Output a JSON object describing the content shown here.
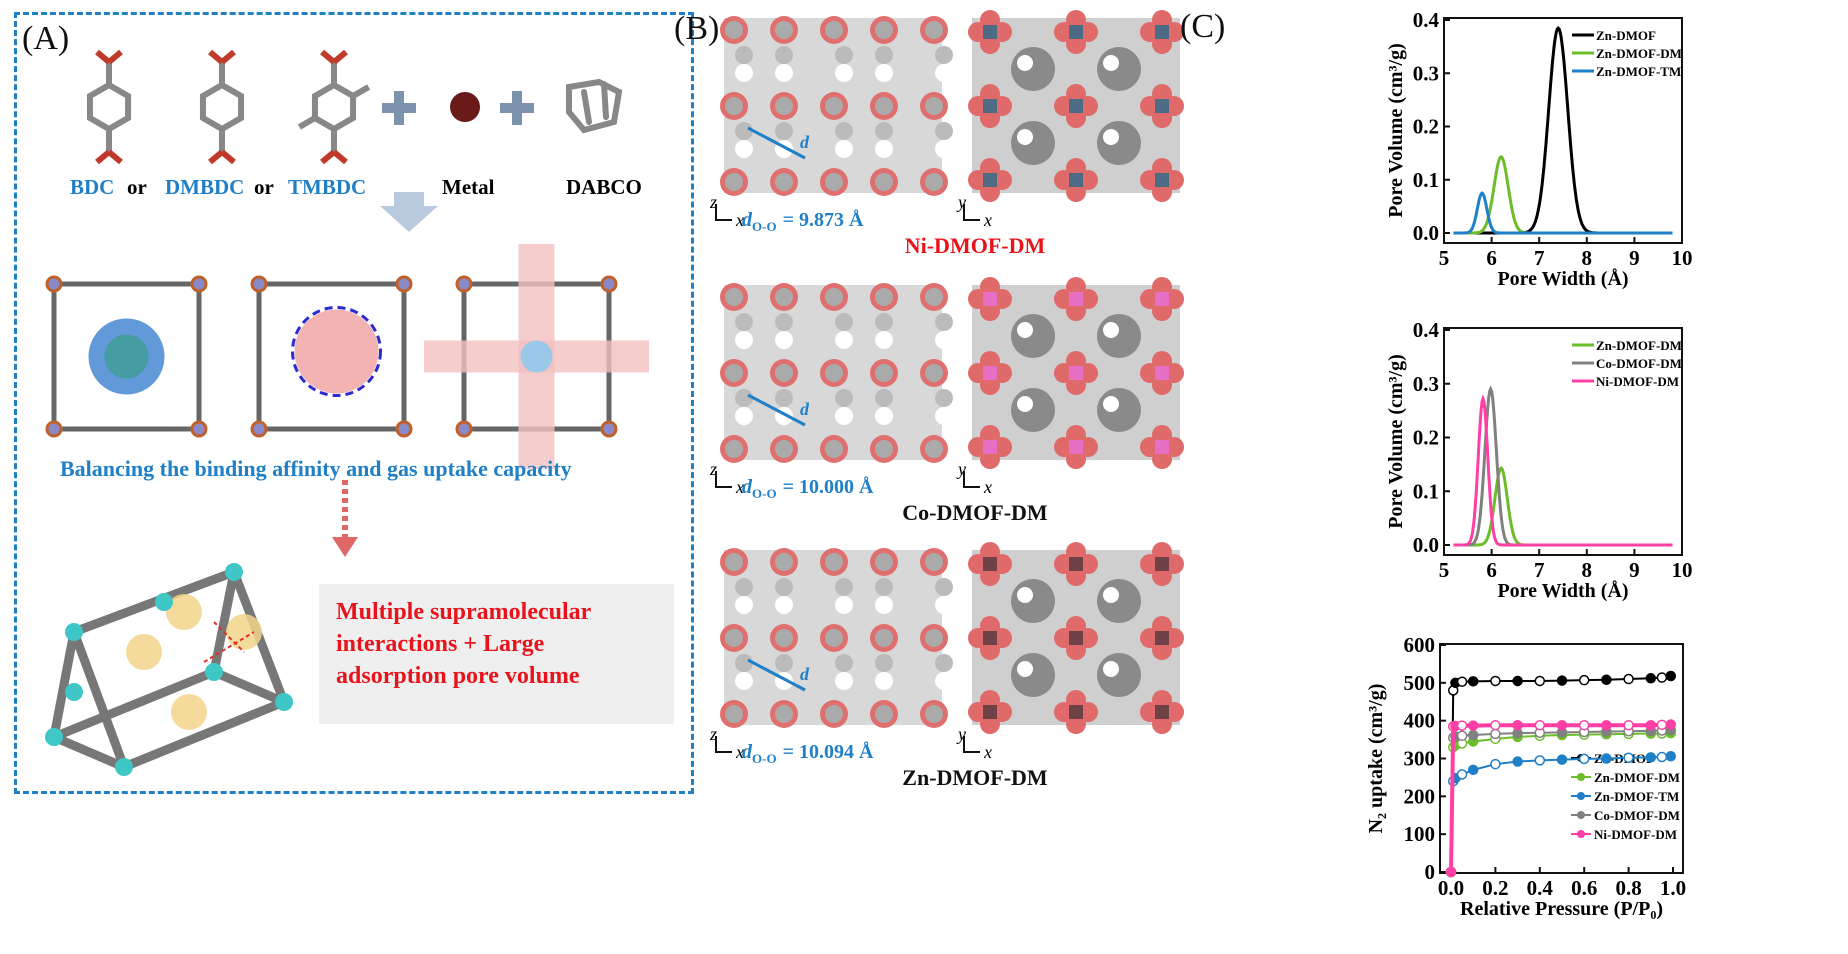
{
  "panels": {
    "a": {
      "label": "(A)",
      "linkers": [
        "BDC",
        "DMBDC",
        "TMBDC"
      ],
      "or_word": "or",
      "plus": "+",
      "metal": "Metal",
      "dabco": "DABCO",
      "balance_text": "Balancing the binding affinity and gas uptake capacity",
      "result_text_line1": "Multiple supramolecular",
      "result_text_line2": "interactions + Large",
      "result_text_line3": "adsorption pore volume",
      "colors": {
        "accent": "#1f7fc7",
        "highlight": "#e8141b",
        "metal": "#6b1a1a",
        "node": "#3fc6c6"
      }
    },
    "b": {
      "label": "(B)",
      "rows": [
        {
          "name": "Ni-DMOF-DM",
          "d_prefix": "d",
          "d_sub": "O-O",
          "d_value": "= 9.873 Å",
          "name_color": "#e8141b",
          "metal_color": "#4e6b86"
        },
        {
          "name": "Co-DMOF-DM",
          "d_prefix": "d",
          "d_sub": "O-O",
          "d_value": "= 10.000 Å",
          "name_color": "#111111",
          "metal_color": "#e66fc4"
        },
        {
          "name": "Zn-DMOF-DM",
          "d_prefix": "d",
          "d_sub": "O-O",
          "d_value": "= 10.094 Å",
          "name_color": "#111111",
          "metal_color": "#6e4246"
        }
      ],
      "axis_left": {
        "vertical": "z",
        "horizontal": "x"
      },
      "axis_right": {
        "vertical": "y",
        "horizontal": "x"
      },
      "d_marker": "d"
    },
    "c": {
      "label": "(C)"
    }
  },
  "chart_data": [
    {
      "type": "line",
      "xlabel": "Pore Width (Å)",
      "ylabel": "Pore Volume (cm³/g)",
      "xlim": [
        5,
        10
      ],
      "ylim": [
        0,
        0.4
      ],
      "xticks": [
        "5",
        "6",
        "7",
        "8",
        "9",
        "10"
      ],
      "yticks": [
        "0.0",
        "0.1",
        "0.2",
        "0.3",
        "0.4"
      ],
      "legend": "top-right",
      "x_range": [
        5.2,
        9.8
      ],
      "series": [
        {
          "name": "Zn-DMOF",
          "color": "#000000",
          "peak_width_A": 7.4,
          "peak_volume": 0.385,
          "sigma": 0.2
        },
        {
          "name": "Zn-DMOF-DM",
          "color": "#6cbd2a",
          "peak_width_A": 6.2,
          "peak_volume": 0.143,
          "sigma": 0.15
        },
        {
          "name": "Zn-DMOF-TM",
          "color": "#1f7fc7",
          "peak_width_A": 5.8,
          "peak_volume": 0.075,
          "sigma": 0.1
        }
      ]
    },
    {
      "type": "line",
      "xlabel": "Pore Width (Å)",
      "ylabel": "Pore Volume (cm³/g)",
      "xlim": [
        5,
        10
      ],
      "ylim": [
        0,
        0.4
      ],
      "xticks": [
        "5",
        "6",
        "7",
        "8",
        "9",
        "10"
      ],
      "yticks": [
        "0.0",
        "0.1",
        "0.2",
        "0.3",
        "0.4"
      ],
      "legend": "top-right",
      "x_range": [
        5.2,
        9.8
      ],
      "series": [
        {
          "name": "Zn-DMOF-DM",
          "color": "#6cbd2a",
          "peak_width_A": 6.2,
          "peak_volume": 0.143,
          "sigma": 0.13
        },
        {
          "name": "Co-DMOF-DM",
          "color": "#808080",
          "peak_width_A": 5.98,
          "peak_volume": 0.29,
          "sigma": 0.12
        },
        {
          "name": "Ni-DMOF-DM",
          "color": "#ff3fa4",
          "peak_width_A": 5.82,
          "peak_volume": 0.272,
          "sigma": 0.1
        }
      ]
    },
    {
      "type": "scatter",
      "xlabel": "Relative Pressure (P/P₀)",
      "ylabel": "N₂ uptake (cm³/g)",
      "xlim": [
        0,
        1.0
      ],
      "ylim": [
        0,
        600
      ],
      "xticks": [
        "0.0",
        "0.2",
        "0.4",
        "0.6",
        "0.8",
        "1.0"
      ],
      "yticks": [
        "0",
        "100",
        "200",
        "300",
        "400",
        "500",
        "600"
      ],
      "legend": "bottom-right",
      "series": [
        {
          "name": "Zn-DMOF",
          "color": "#000000",
          "x": [
            0,
            0.01,
            0.02,
            0.05,
            0.1,
            0.2,
            0.3,
            0.4,
            0.5,
            0.6,
            0.7,
            0.8,
            0.9,
            0.95,
            0.99
          ],
          "y": [
            0,
            480,
            500,
            503,
            504,
            505,
            505,
            505,
            506,
            507,
            508,
            510,
            512,
            514,
            518
          ]
        },
        {
          "name": "Zn-DMOF-DM",
          "color": "#6cbd2a",
          "x": [
            0,
            0.01,
            0.02,
            0.05,
            0.1,
            0.2,
            0.3,
            0.4,
            0.5,
            0.6,
            0.7,
            0.8,
            0.9,
            0.95,
            0.99
          ],
          "y": [
            0,
            330,
            335,
            340,
            345,
            352,
            357,
            360,
            362,
            363,
            364,
            365,
            366,
            366,
            367
          ]
        },
        {
          "name": "Zn-DMOF-TM",
          "color": "#1f7fc7",
          "x": [
            0,
            0.01,
            0.02,
            0.05,
            0.1,
            0.2,
            0.3,
            0.4,
            0.5,
            0.6,
            0.7,
            0.8,
            0.9,
            0.95,
            0.99
          ],
          "y": [
            0,
            240,
            248,
            258,
            270,
            285,
            292,
            295,
            297,
            299,
            300,
            302,
            303,
            304,
            306
          ]
        },
        {
          "name": "Co-DMOF-DM",
          "color": "#808080",
          "x": [
            0,
            0.01,
            0.02,
            0.05,
            0.1,
            0.2,
            0.3,
            0.4,
            0.5,
            0.6,
            0.7,
            0.8,
            0.9,
            0.95,
            0.99
          ],
          "y": [
            0,
            355,
            358,
            360,
            362,
            365,
            367,
            368,
            369,
            370,
            371,
            372,
            373,
            374,
            375
          ]
        },
        {
          "name": "Ni-DMOF-DM",
          "color": "#ff3fa4",
          "x": [
            0,
            0.01,
            0.02,
            0.05,
            0.1,
            0.2,
            0.3,
            0.4,
            0.5,
            0.6,
            0.7,
            0.8,
            0.9,
            0.95,
            0.99
          ],
          "y": [
            0,
            385,
            386,
            387,
            387,
            388,
            388,
            388,
            388,
            388,
            388,
            388,
            388,
            389,
            390
          ]
        }
      ]
    }
  ]
}
